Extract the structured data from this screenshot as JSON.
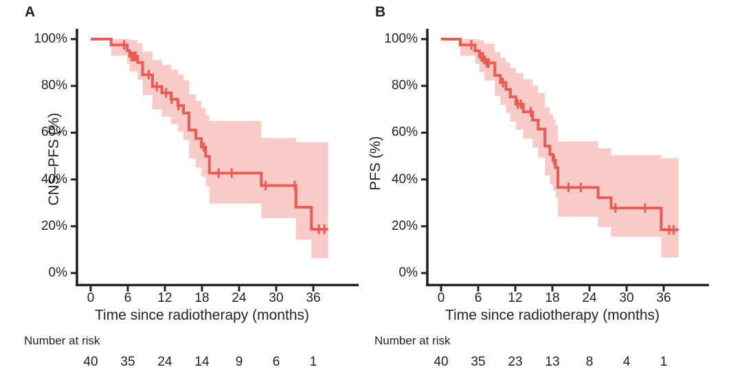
{
  "chart_data": [
    {
      "type": "line",
      "subtype": "kaplan_meier_step_with_confidence_band",
      "panel_label": "A",
      "ylabel": "CNS–PFS (%)",
      "xlabel": "Time since radiotherapy (months)",
      "risk_label": "Number at risk",
      "ytick_labels": [
        "100%",
        "80%",
        "60%",
        "40%",
        "20%",
        "0%"
      ],
      "ytick_percent": [
        100,
        80,
        60,
        40,
        20,
        0
      ],
      "xtick_labels": [
        "0",
        "6",
        "12",
        "18",
        "24",
        "30",
        "36"
      ],
      "xticks": [
        0,
        6,
        12,
        18,
        24,
        30,
        36
      ],
      "xlim": [
        0,
        43
      ],
      "ylim": [
        0,
        100
      ],
      "grid": false,
      "legend": "none",
      "risk_times": [
        0,
        6,
        12,
        18,
        24,
        30,
        36
      ],
      "number_at_risk": [
        40,
        35,
        24,
        14,
        9,
        6,
        1
      ],
      "start": {
        "t": 0,
        "s": 100
      },
      "end_time": 38.4,
      "steps": [
        {
          "t": 3.3,
          "s": 97.5,
          "lo": 92.9,
          "hi": 100
        },
        {
          "t": 5.9,
          "s": 95.1,
          "lo": 89.6,
          "hi": 100
        },
        {
          "t": 6.3,
          "s": 92.6,
          "lo": 86.1,
          "hi": 99.6
        },
        {
          "t": 7.6,
          "s": 90.0,
          "lo": 82.6,
          "hi": 98.2
        },
        {
          "t": 8.4,
          "s": 84.8,
          "lo": 76.1,
          "hi": 94.7
        },
        {
          "t": 10.0,
          "s": 79.7,
          "lo": 69.9,
          "hi": 91.1
        },
        {
          "t": 11.5,
          "s": 77.0,
          "lo": 66.8,
          "hi": 89.0
        },
        {
          "t": 13.0,
          "s": 74.3,
          "lo": 63.6,
          "hi": 87.0
        },
        {
          "t": 14.1,
          "s": 71.6,
          "lo": 60.4,
          "hi": 84.9
        },
        {
          "t": 15.0,
          "s": 68.4,
          "lo": 56.9,
          "hi": 82.4
        },
        {
          "t": 15.9,
          "s": 61.1,
          "lo": 49.0,
          "hi": 76.4
        },
        {
          "t": 17.0,
          "s": 57.5,
          "lo": 45.1,
          "hi": 73.5
        },
        {
          "t": 17.9,
          "s": 53.8,
          "lo": 41.2,
          "hi": 70.5
        },
        {
          "t": 18.6,
          "s": 49.9,
          "lo": 37.1,
          "hi": 67.4
        },
        {
          "t": 19.2,
          "s": 42.7,
          "lo": 29.7,
          "hi": 65.0
        },
        {
          "t": 27.6,
          "s": 37.4,
          "lo": 23.5,
          "hi": 57.7
        },
        {
          "t": 33.2,
          "s": 28.1,
          "lo": 14.2,
          "hi": 55.9
        },
        {
          "t": 35.7,
          "s": 18.7,
          "lo": 6.3,
          "hi": 55.9
        }
      ],
      "censors": [
        {
          "t": 5.4,
          "s": 97.5
        },
        {
          "t": 6.6,
          "s": 92.6
        },
        {
          "t": 6.85,
          "s": 92.6
        },
        {
          "t": 7.1,
          "s": 92.6
        },
        {
          "t": 7.3,
          "s": 92.6
        },
        {
          "t": 9.4,
          "s": 84.8
        },
        {
          "t": 10.7,
          "s": 79.7
        },
        {
          "t": 12.2,
          "s": 77.0
        },
        {
          "t": 13.1,
          "s": 74.3
        },
        {
          "t": 14.2,
          "s": 71.6
        },
        {
          "t": 18.3,
          "s": 53.8
        },
        {
          "t": 20.7,
          "s": 42.7
        },
        {
          "t": 22.8,
          "s": 42.7
        },
        {
          "t": 28.3,
          "s": 37.4
        },
        {
          "t": 33.0,
          "s": 37.4
        },
        {
          "t": 36.9,
          "s": 18.7
        },
        {
          "t": 37.8,
          "s": 18.7
        }
      ],
      "colors": {
        "line": "#e85c54",
        "band": "#f8cbc8",
        "axis": "#231f20"
      }
    },
    {
      "type": "line",
      "subtype": "kaplan_meier_step_with_confidence_band",
      "panel_label": "B",
      "ylabel": "PFS (%)",
      "xlabel": "Time since radiotherapy (months)",
      "risk_label": "Number at risk",
      "ytick_labels": [
        "100%",
        "80%",
        "60%",
        "40%",
        "20%",
        "0%"
      ],
      "ytick_percent": [
        100,
        80,
        60,
        40,
        20,
        0
      ],
      "xtick_labels": [
        "0",
        "6",
        "12",
        "18",
        "24",
        "30",
        "36"
      ],
      "xticks": [
        0,
        6,
        12,
        18,
        24,
        30,
        36
      ],
      "xlim": [
        0,
        43
      ],
      "ylim": [
        0,
        100
      ],
      "grid": false,
      "legend": "none",
      "risk_times": [
        0,
        6,
        12,
        18,
        24,
        30,
        36
      ],
      "number_at_risk": [
        40,
        35,
        23,
        13,
        8,
        4,
        1
      ],
      "start": {
        "t": 0,
        "s": 100
      },
      "end_time": 38.4,
      "steps": [
        {
          "t": 3.1,
          "s": 97.5,
          "lo": 92.9,
          "hi": 100
        },
        {
          "t": 5.5,
          "s": 95.0,
          "lo": 89.4,
          "hi": 100
        },
        {
          "t": 6.2,
          "s": 92.4,
          "lo": 85.9,
          "hi": 99.5
        },
        {
          "t": 7.0,
          "s": 89.8,
          "lo": 82.3,
          "hi": 98.1
        },
        {
          "t": 8.7,
          "s": 84.5,
          "lo": 75.7,
          "hi": 94.5
        },
        {
          "t": 9.6,
          "s": 81.4,
          "lo": 71.9,
          "hi": 92.0
        },
        {
          "t": 10.5,
          "s": 78.5,
          "lo": 68.4,
          "hi": 90.0
        },
        {
          "t": 11.2,
          "s": 75.3,
          "lo": 64.7,
          "hi": 87.7
        },
        {
          "t": 12.1,
          "s": 72.2,
          "lo": 61.2,
          "hi": 85.4
        },
        {
          "t": 13.3,
          "s": 68.9,
          "lo": 57.5,
          "hi": 82.8
        },
        {
          "t": 14.8,
          "s": 65.4,
          "lo": 53.6,
          "hi": 80.1
        },
        {
          "t": 15.7,
          "s": 61.5,
          "lo": 49.3,
          "hi": 77.0
        },
        {
          "t": 16.8,
          "s": 54.3,
          "lo": 41.6,
          "hi": 70.9
        },
        {
          "t": 17.6,
          "s": 50.7,
          "lo": 37.9,
          "hi": 67.9
        },
        {
          "t": 18.1,
          "s": 48.2,
          "lo": 35.3,
          "hi": 65.7
        },
        {
          "t": 18.5,
          "s": 45.1,
          "lo": 32.2,
          "hi": 63.2
        },
        {
          "t": 18.9,
          "s": 36.6,
          "lo": 24.0,
          "hi": 56.3
        },
        {
          "t": 25.4,
          "s": 32.2,
          "lo": 19.6,
          "hi": 53.3
        },
        {
          "t": 27.5,
          "s": 27.8,
          "lo": 15.5,
          "hi": 50.4
        },
        {
          "t": 35.6,
          "s": 18.5,
          "lo": 6.6,
          "hi": 49.1
        }
      ],
      "censors": [
        {
          "t": 4.9,
          "s": 97.5
        },
        {
          "t": 6.5,
          "s": 92.4
        },
        {
          "t": 6.8,
          "s": 92.4
        },
        {
          "t": 7.4,
          "s": 89.8
        },
        {
          "t": 7.7,
          "s": 89.8
        },
        {
          "t": 10.0,
          "s": 81.4
        },
        {
          "t": 12.4,
          "s": 72.2
        },
        {
          "t": 12.9,
          "s": 72.2
        },
        {
          "t": 14.5,
          "s": 68.9
        },
        {
          "t": 18.3,
          "s": 48.2
        },
        {
          "t": 20.6,
          "s": 36.6
        },
        {
          "t": 22.6,
          "s": 36.6
        },
        {
          "t": 28.2,
          "s": 27.8
        },
        {
          "t": 33.0,
          "s": 27.8
        },
        {
          "t": 36.9,
          "s": 18.5
        },
        {
          "t": 37.6,
          "s": 18.5
        }
      ],
      "colors": {
        "line": "#e85c54",
        "band": "#f8cbc8",
        "axis": "#231f20"
      }
    }
  ]
}
